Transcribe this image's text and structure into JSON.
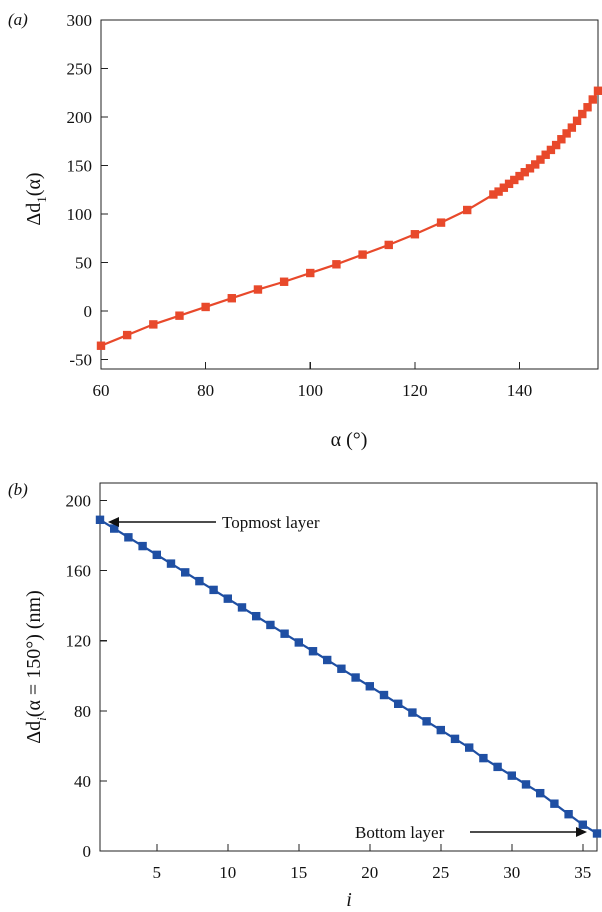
{
  "chart_data": [
    {
      "type": "line",
      "panel_label": "(a)",
      "title": "",
      "xlabel": "α (°)",
      "ylabel_parts": [
        "Δd",
        "1",
        "(α)"
      ],
      "xlim": [
        60,
        155
      ],
      "ylim": [
        -60,
        300
      ],
      "xticks": [
        60,
        80,
        100,
        120,
        140
      ],
      "yticks": [
        -50,
        0,
        50,
        100,
        150,
        200,
        250,
        300
      ],
      "grid": false,
      "series": [
        {
          "color": "#e8492b",
          "marker": "square",
          "x": [
            60,
            65,
            70,
            75,
            80,
            85,
            90,
            95,
            100,
            105,
            110,
            115,
            120,
            125,
            130,
            135,
            136,
            137,
            138,
            139,
            140,
            141,
            142,
            143,
            144,
            145,
            146,
            147,
            148,
            149,
            150,
            151,
            152,
            153,
            154,
            155
          ],
          "y": [
            -36,
            -25,
            -14,
            -5,
            4,
            13,
            22,
            30,
            39,
            48,
            58,
            68,
            79,
            91,
            104,
            120,
            123,
            127,
            131,
            135,
            139,
            143,
            147,
            151,
            156,
            161,
            166,
            171,
            177,
            183,
            189,
            196,
            203,
            210,
            218,
            227
          ]
        }
      ]
    },
    {
      "type": "line",
      "panel_label": "(b)",
      "title": "",
      "xlabel": "i",
      "ylabel_parts": [
        "Δd",
        "i",
        "(α = 150°) (nm)"
      ],
      "xlim": [
        1,
        36
      ],
      "ylim": [
        0,
        210
      ],
      "xticks": [
        5,
        10,
        15,
        20,
        25,
        30,
        35
      ],
      "yticks": [
        0,
        40,
        80,
        120,
        160,
        200
      ],
      "grid": false,
      "annotations": [
        "Topmost layer",
        "Bottom layer"
      ],
      "series": [
        {
          "color": "#1f4fa3",
          "marker": "square",
          "x": [
            1,
            2,
            3,
            4,
            5,
            6,
            7,
            8,
            9,
            10,
            11,
            12,
            13,
            14,
            15,
            16,
            17,
            18,
            19,
            20,
            21,
            22,
            23,
            24,
            25,
            26,
            27,
            28,
            29,
            30,
            31,
            32,
            33,
            34,
            35,
            36
          ],
          "y": [
            189,
            184,
            179,
            174,
            169,
            164,
            159,
            154,
            149,
            144,
            139,
            134,
            129,
            124,
            119,
            114,
            109,
            104,
            99,
            94,
            89,
            84,
            79,
            74,
            69,
            64,
            59,
            53,
            48,
            43,
            38,
            33,
            27,
            21,
            15,
            10
          ]
        }
      ]
    }
  ]
}
